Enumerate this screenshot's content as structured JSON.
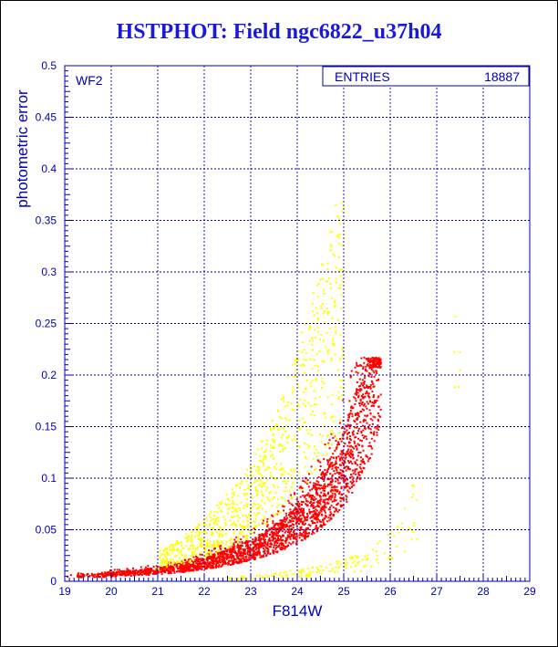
{
  "title": "HSTPHOT: Field ngc6822_u37h04",
  "colors": {
    "title": "#1a1ad6",
    "axis": "#0000b4",
    "grid": "#0000b4",
    "series_primary": "#ff0000",
    "series_secondary": "#ffff00"
  },
  "panel_label": "WF2",
  "stats": {
    "label": "ENTRIES",
    "value": "18887"
  },
  "chart_data": {
    "type": "scatter",
    "title": "HSTPHOT: Field ngc6822_u37h04",
    "xlabel": "F814W",
    "ylabel": "photometric error",
    "xlim": [
      19,
      29
    ],
    "ylim": [
      0,
      0.5
    ],
    "xticks": [
      "19",
      "20",
      "21",
      "22",
      "23",
      "24",
      "25",
      "26",
      "27",
      "28",
      "29"
    ],
    "yticks": [
      "0",
      "0.05",
      "0.1",
      "0.15",
      "0.2",
      "0.25",
      "0.3",
      "0.35",
      "0.4",
      "0.45",
      "0.5"
    ],
    "grid": true,
    "series": [
      {
        "color": "#ff0000",
        "description_points": [
          [
            19.0,
            0.004
          ],
          [
            20.0,
            0.006
          ],
          [
            21.0,
            0.009
          ],
          [
            21.5,
            0.012
          ],
          [
            22.0,
            0.016
          ],
          [
            22.5,
            0.021
          ],
          [
            23.0,
            0.028
          ],
          [
            23.5,
            0.037
          ],
          [
            24.0,
            0.05
          ],
          [
            24.5,
            0.07
          ],
          [
            25.0,
            0.1
          ],
          [
            25.3,
            0.13
          ],
          [
            25.6,
            0.17
          ],
          [
            25.8,
            0.215
          ]
        ]
      },
      {
        "color": "#ffff00",
        "description_points": [
          [
            21.0,
            0.015
          ],
          [
            21.5,
            0.022
          ],
          [
            22.0,
            0.032
          ],
          [
            22.5,
            0.045
          ],
          [
            23.0,
            0.06
          ],
          [
            23.5,
            0.085
          ],
          [
            24.0,
            0.12
          ],
          [
            24.5,
            0.16
          ],
          [
            25.0,
            0.21
          ]
        ]
      },
      {
        "color": "#ffff00",
        "description_points": [
          [
            22.5,
            0.002
          ],
          [
            23.5,
            0.004
          ],
          [
            24.5,
            0.008
          ],
          [
            25.5,
            0.015
          ],
          [
            26.2,
            0.03
          ],
          [
            26.6,
            0.06
          ]
        ]
      },
      {
        "color": "#ffff00",
        "description_points": [
          [
            27.3,
            0.165
          ],
          [
            27.4,
            0.16
          ],
          [
            27.5,
            0.167
          ]
        ]
      }
    ],
    "entries": "18887",
    "label": "WF2"
  }
}
